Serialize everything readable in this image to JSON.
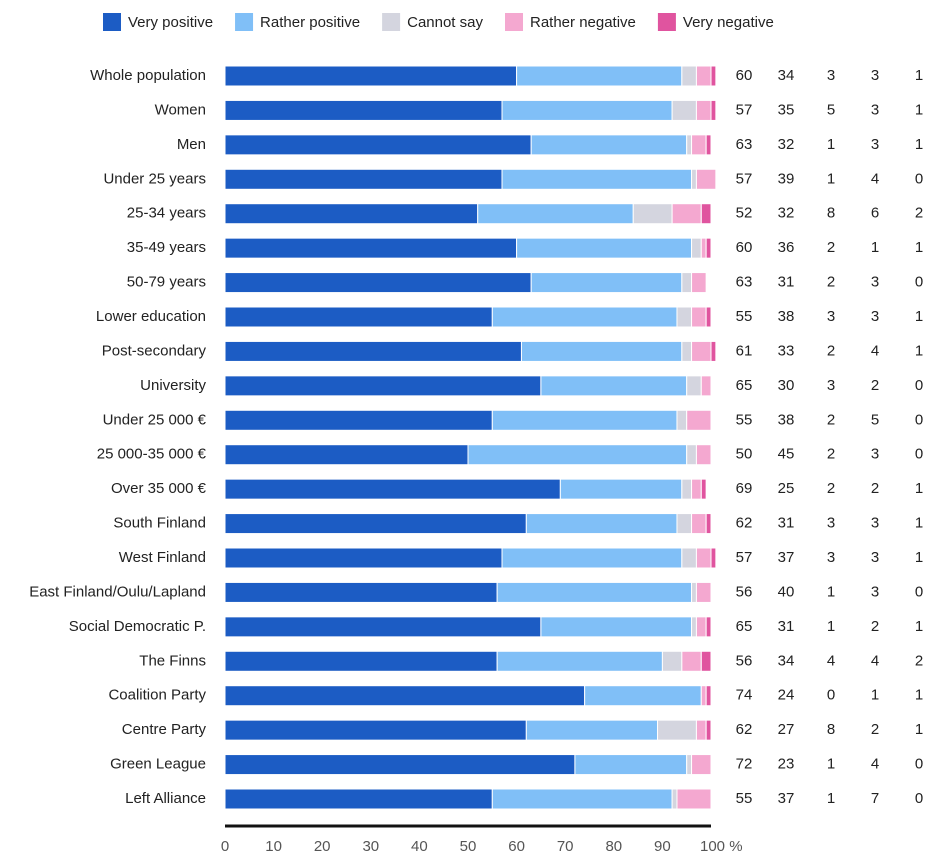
{
  "chart_data": {
    "type": "stacked-bar-horizontal",
    "categories": [
      "Whole population",
      "Women",
      "Men",
      "Under 25 years",
      "25-34 years",
      "35-49 years",
      "50-79 years",
      "Lower education",
      "Post-secondary",
      "University",
      "Under 25 000 €",
      "25 000-35 000 €",
      "Over 35 000 €",
      "South Finland",
      "West Finland",
      "East Finland/Oulu/Lapland",
      "Social Democratic P.",
      "The Finns",
      "Coalition Party",
      "Centre Party",
      "Green League",
      "Left Alliance"
    ],
    "series": [
      {
        "name": "Very positive",
        "color": "#1c5cc4",
        "values": [
          60,
          57,
          63,
          57,
          52,
          60,
          63,
          55,
          61,
          65,
          55,
          50,
          69,
          62,
          57,
          56,
          65,
          56,
          74,
          62,
          72,
          55
        ]
      },
      {
        "name": "Rather positive",
        "color": "#80bff7",
        "values": [
          34,
          35,
          32,
          39,
          32,
          36,
          31,
          38,
          33,
          30,
          38,
          45,
          25,
          31,
          37,
          40,
          31,
          34,
          24,
          27,
          23,
          37
        ]
      },
      {
        "name": "Cannot say",
        "color": "#d4d5df",
        "values": [
          3,
          5,
          1,
          1,
          8,
          2,
          2,
          3,
          2,
          3,
          2,
          2,
          2,
          3,
          3,
          1,
          1,
          4,
          0,
          8,
          1,
          1
        ]
      },
      {
        "name": "Rather negative",
        "color": "#f4a8d0",
        "values": [
          3,
          3,
          3,
          4,
          6,
          1,
          3,
          3,
          4,
          2,
          5,
          3,
          2,
          3,
          3,
          3,
          2,
          4,
          1,
          2,
          4,
          7
        ]
      },
      {
        "name": "Very negative",
        "color": "#e0549f",
        "values": [
          1,
          1,
          1,
          0,
          2,
          1,
          0,
          1,
          1,
          0,
          0,
          0,
          1,
          1,
          1,
          0,
          1,
          2,
          1,
          1,
          0,
          0
        ]
      }
    ],
    "xlim": [
      0,
      100
    ],
    "xticks": [
      0,
      10,
      20,
      30,
      40,
      50,
      60,
      70,
      80,
      90,
      {
        "value": 100,
        "label": "100 %"
      }
    ],
    "legend": "top"
  }
}
